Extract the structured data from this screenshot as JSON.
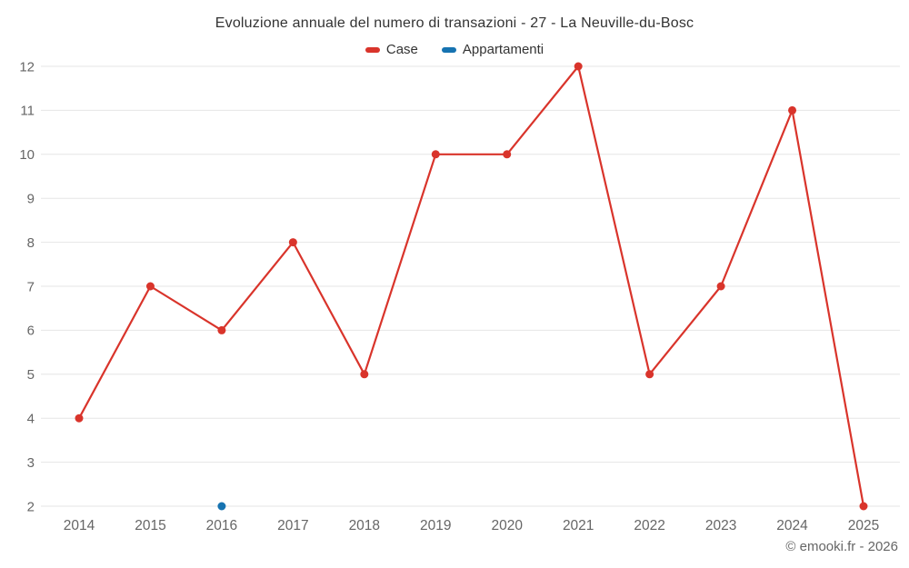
{
  "chart_data": {
    "type": "line",
    "title": "Evoluzione annuale del numero di transazioni - 27 - La Neuville-du-Bosc",
    "categories": [
      "2014",
      "2015",
      "2016",
      "2017",
      "2018",
      "2019",
      "2020",
      "2021",
      "2022",
      "2023",
      "2024",
      "2025"
    ],
    "series": [
      {
        "name": "Case",
        "color": "#d9342b",
        "values": [
          4,
          7,
          6,
          8,
          5,
          10,
          10,
          12,
          5,
          7,
          11,
          2
        ]
      },
      {
        "name": "Appartamenti",
        "color": "#1673b1",
        "values": [
          null,
          null,
          2,
          null,
          null,
          null,
          null,
          null,
          null,
          null,
          null,
          null
        ]
      }
    ],
    "ylim": [
      2,
      12
    ],
    "ytick_step": 1,
    "xlabel": "",
    "ylabel": "",
    "grid": "horizontal",
    "legend_position": "top"
  },
  "footer": {
    "credit": "© emooki.fr - 2026"
  },
  "colors": {
    "grid": "#e6e6e6",
    "axis_label": "#666666",
    "title": "#333333"
  }
}
